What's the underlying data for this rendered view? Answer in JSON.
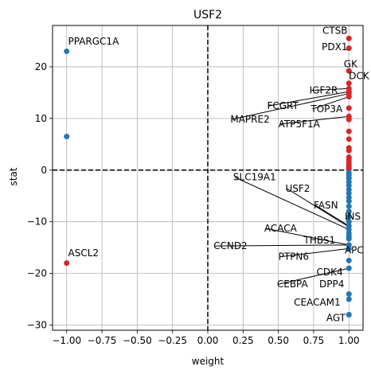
{
  "chart_data": {
    "type": "scatter",
    "title": "USF2",
    "xlabel": "weight",
    "ylabel": "stat",
    "xlim": [
      -1.1,
      1.1
    ],
    "ylim": [
      -31,
      28
    ],
    "xticks": [
      -1.0,
      -0.75,
      -0.5,
      -0.25,
      0.0,
      0.25,
      0.5,
      0.75,
      1.0
    ],
    "xtick_labels": [
      "−1.00",
      "−0.75",
      "−0.50",
      "−0.25",
      "0.00",
      "0.25",
      "0.50",
      "0.75",
      "1.00"
    ],
    "yticks": [
      -30,
      -20,
      -10,
      0,
      10,
      20
    ],
    "ytick_labels": [
      "−30",
      "−20",
      "−10",
      "0",
      "10",
      "20"
    ],
    "grid": true,
    "reference_lines": {
      "x": 0,
      "y": 0,
      "style": "dashed"
    },
    "colors": {
      "positive": "#d62728",
      "negative": "#1f77b4"
    },
    "points": [
      {
        "x": -1.0,
        "y": 23.0,
        "color": "negative"
      },
      {
        "x": -1.0,
        "y": 6.5,
        "color": "negative"
      },
      {
        "x": -1.0,
        "y": -18.0,
        "color": "positive"
      },
      {
        "x": 1.0,
        "y": 25.5,
        "color": "positive"
      },
      {
        "x": 1.0,
        "y": 23.6,
        "color": "positive"
      },
      {
        "x": 1.0,
        "y": 19.2,
        "color": "positive"
      },
      {
        "x": 1.0,
        "y": 16.8,
        "color": "positive"
      },
      {
        "x": 1.0,
        "y": 15.8,
        "color": "positive"
      },
      {
        "x": 1.0,
        "y": 15.2,
        "color": "positive"
      },
      {
        "x": 1.0,
        "y": 14.8,
        "color": "positive"
      },
      {
        "x": 1.0,
        "y": 14.2,
        "color": "positive"
      },
      {
        "x": 1.0,
        "y": 12.0,
        "color": "positive"
      },
      {
        "x": 1.0,
        "y": 10.4,
        "color": "positive"
      },
      {
        "x": 1.0,
        "y": 9.8,
        "color": "positive"
      },
      {
        "x": 1.0,
        "y": 7.5,
        "color": "positive"
      },
      {
        "x": 1.0,
        "y": 6.0,
        "color": "positive"
      },
      {
        "x": 1.0,
        "y": 4.3,
        "color": "positive"
      },
      {
        "x": 1.0,
        "y": 3.8,
        "color": "positive"
      },
      {
        "x": 1.0,
        "y": 2.5,
        "color": "positive"
      },
      {
        "x": 1.0,
        "y": 2.0,
        "color": "positive"
      },
      {
        "x": 1.0,
        "y": 1.5,
        "color": "positive"
      },
      {
        "x": 1.0,
        "y": 1.0,
        "color": "positive"
      },
      {
        "x": 1.0,
        "y": 0.6,
        "color": "positive"
      },
      {
        "x": 1.0,
        "y": 0.3,
        "color": "positive"
      },
      {
        "x": 1.0,
        "y": -0.5,
        "color": "negative"
      },
      {
        "x": 1.0,
        "y": -1.0,
        "color": "negative"
      },
      {
        "x": 1.0,
        "y": -1.6,
        "color": "negative"
      },
      {
        "x": 1.0,
        "y": -2.3,
        "color": "negative"
      },
      {
        "x": 1.0,
        "y": -3.0,
        "color": "negative"
      },
      {
        "x": 1.0,
        "y": -3.8,
        "color": "negative"
      },
      {
        "x": 1.0,
        "y": -4.5,
        "color": "negative"
      },
      {
        "x": 1.0,
        "y": -5.3,
        "color": "negative"
      },
      {
        "x": 1.0,
        "y": -6.0,
        "color": "negative"
      },
      {
        "x": 1.0,
        "y": -7.0,
        "color": "negative"
      },
      {
        "x": 1.0,
        "y": -8.0,
        "color": "negative"
      },
      {
        "x": 1.0,
        "y": -9.0,
        "color": "negative"
      },
      {
        "x": 1.0,
        "y": -10.0,
        "color": "negative"
      },
      {
        "x": 1.0,
        "y": -10.8,
        "color": "negative"
      },
      {
        "x": 1.0,
        "y": -11.5,
        "color": "negative"
      },
      {
        "x": 1.0,
        "y": -12.2,
        "color": "negative"
      },
      {
        "x": 1.0,
        "y": -12.8,
        "color": "negative"
      },
      {
        "x": 1.0,
        "y": -13.3,
        "color": "negative"
      },
      {
        "x": 1.0,
        "y": -14.5,
        "color": "negative"
      },
      {
        "x": 1.0,
        "y": -15.2,
        "color": "negative"
      },
      {
        "x": 1.0,
        "y": -17.5,
        "color": "negative"
      },
      {
        "x": 1.0,
        "y": -19.0,
        "color": "negative"
      },
      {
        "x": 1.0,
        "y": -24.0,
        "color": "negative"
      },
      {
        "x": 1.0,
        "y": -25.0,
        "color": "negative"
      },
      {
        "x": 1.0,
        "y": -28.0,
        "color": "negative"
      }
    ],
    "annotations": [
      {
        "text": "PPARGC1A",
        "x": -0.99,
        "y": 24.3,
        "anchor": "start",
        "line_to": null
      },
      {
        "text": "ASCL2",
        "x": -0.99,
        "y": -16.7,
        "anchor": "start",
        "line_to": null
      },
      {
        "text": "CTSB",
        "x": 0.99,
        "y": 26.4,
        "anchor": "end",
        "line_to": null
      },
      {
        "text": "PDX1",
        "x": 0.99,
        "y": 23.2,
        "anchor": "end",
        "line_to": null
      },
      {
        "text": "GK",
        "x": 1.06,
        "y": 19.9,
        "anchor": "end",
        "line_to": null
      },
      {
        "text": "DCK",
        "x": 1.0,
        "y": 17.6,
        "anchor": "start",
        "line_to": null
      },
      {
        "text": "IGF2R",
        "x": 0.72,
        "y": 14.8,
        "anchor": "start",
        "line_to": [
          1.0,
          15.8
        ]
      },
      {
        "text": "FCGRT",
        "x": 0.42,
        "y": 11.8,
        "anchor": "start",
        "line_to": [
          1.0,
          15.2
        ]
      },
      {
        "text": "TOP3A",
        "x": 0.73,
        "y": 11.2,
        "anchor": "start",
        "line_to": [
          1.0,
          14.2
        ]
      },
      {
        "text": "MAPRE2",
        "x": 0.16,
        "y": 9.2,
        "anchor": "start",
        "line_to": [
          1.0,
          14.8
        ]
      },
      {
        "text": "ATP5F1A",
        "x": 0.5,
        "y": 8.3,
        "anchor": "start",
        "line_to": [
          1.0,
          10.4
        ]
      },
      {
        "text": "SLC19A1",
        "x": 0.18,
        "y": -2.0,
        "anchor": "start",
        "line_to": [
          1.0,
          -11.5
        ]
      },
      {
        "text": "USF2",
        "x": 0.55,
        "y": -4.2,
        "anchor": "start",
        "line_to": [
          1.0,
          -11.0
        ]
      },
      {
        "text": "FASN",
        "x": 0.75,
        "y": -7.4,
        "anchor": "start",
        "line_to": [
          1.0,
          -10.8
        ]
      },
      {
        "text": "INS",
        "x": 0.97,
        "y": -9.6,
        "anchor": "start",
        "line_to": [
          1.0,
          -12.2
        ]
      },
      {
        "text": "ACACA",
        "x": 0.4,
        "y": -11.9,
        "anchor": "start",
        "line_to": [
          1.0,
          -14.5
        ]
      },
      {
        "text": "THBS1",
        "x": 0.68,
        "y": -14.2,
        "anchor": "start",
        "line_to": null
      },
      {
        "text": "CCND2",
        "x": 0.04,
        "y": -15.3,
        "anchor": "start",
        "line_to": [
          1.0,
          -14.5
        ]
      },
      {
        "text": "APC",
        "x": 0.97,
        "y": -16.1,
        "anchor": "start",
        "line_to": null
      },
      {
        "text": "PTPN6",
        "x": 0.5,
        "y": -17.4,
        "anchor": "start",
        "line_to": [
          1.0,
          -15.2
        ]
      },
      {
        "text": "CDK4",
        "x": 0.77,
        "y": -20.4,
        "anchor": "start",
        "line_to": null
      },
      {
        "text": "CEBPA",
        "x": 0.49,
        "y": -22.7,
        "anchor": "start",
        "line_to": [
          1.0,
          -19.0
        ]
      },
      {
        "text": "DPP4",
        "x": 0.79,
        "y": -22.7,
        "anchor": "start",
        "line_to": null
      },
      {
        "text": "CEACAM1",
        "x": 0.61,
        "y": -26.2,
        "anchor": "start",
        "line_to": null
      },
      {
        "text": "AGT",
        "x": 0.84,
        "y": -29.2,
        "anchor": "start",
        "line_to": null
      }
    ]
  }
}
